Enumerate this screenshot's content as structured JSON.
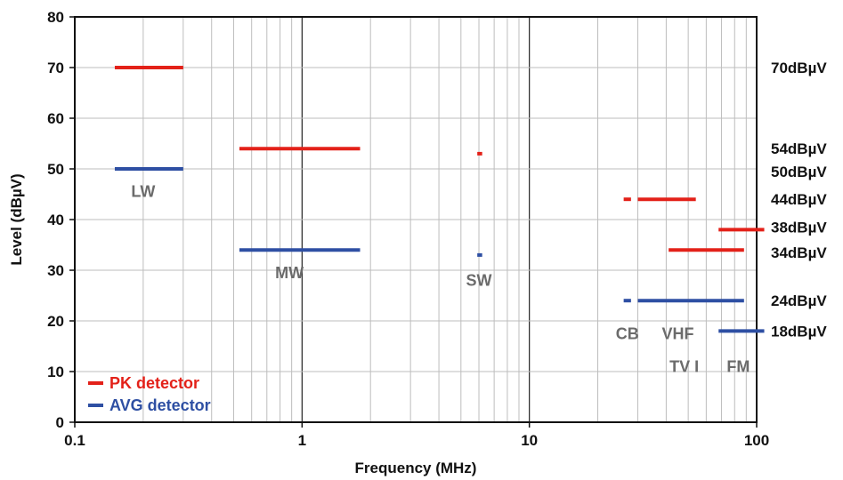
{
  "chart_data": {
    "type": "line",
    "xlabel": "Frequency (MHz)",
    "ylabel": "Level (dBµV)",
    "x_scale": "log",
    "xlim": [
      0.1,
      100
    ],
    "ylim": [
      0,
      80
    ],
    "x_ticks": [
      "0.1",
      "1",
      "10",
      "100"
    ],
    "y_ticks": [
      "0",
      "10",
      "20",
      "30",
      "40",
      "50",
      "60",
      "70",
      "80"
    ],
    "grid": true,
    "legend": {
      "position": "bottom-left",
      "items": [
        {
          "name": "PK detector",
          "color": "#e32119"
        },
        {
          "name": "AVG detector",
          "color": "#2e4fa3"
        }
      ]
    },
    "series": [
      {
        "name": "PK detector",
        "color": "#e32119",
        "segments": [
          {
            "x": [
              0.15,
              0.3
            ],
            "y": 70
          },
          {
            "x": [
              0.53,
              1.8
            ],
            "y": 54
          },
          {
            "x": [
              5.9,
              6.2
            ],
            "y": 53
          },
          {
            "x": [
              26,
              28
            ],
            "y": 44
          },
          {
            "x": [
              30,
              54
            ],
            "y": 44
          },
          {
            "x": [
              41,
              88
            ],
            "y": 34
          },
          {
            "x": [
              68,
              108
            ],
            "y": 38
          }
        ]
      },
      {
        "name": "AVG detector",
        "color": "#2e4fa3",
        "segments": [
          {
            "x": [
              0.15,
              0.3
            ],
            "y": 50
          },
          {
            "x": [
              0.53,
              1.8
            ],
            "y": 34
          },
          {
            "x": [
              5.9,
              6.2
            ],
            "y": 33
          },
          {
            "x": [
              26,
              28
            ],
            "y": 24
          },
          {
            "x": [
              30,
              88
            ],
            "y": 24
          },
          {
            "x": [
              68,
              108
            ],
            "y": 18
          }
        ]
      }
    ],
    "band_labels": [
      {
        "text": "LW",
        "x": 0.2,
        "y": 45.5
      },
      {
        "text": "MW",
        "x": 0.88,
        "y": 29.5
      },
      {
        "text": "SW",
        "x": 6.0,
        "y": 28
      },
      {
        "text": "CB",
        "x": 27,
        "y": 17.5
      },
      {
        "text": "VHF",
        "x": 45,
        "y": 17.5
      },
      {
        "text": "TV I",
        "x": 48,
        "y": 11
      },
      {
        "text": "FM",
        "x": 83,
        "y": 11
      }
    ],
    "right_labels": [
      {
        "text": "70dBµV",
        "y": 70
      },
      {
        "text": "54dBµV",
        "y": 54
      },
      {
        "text": "50dBµV",
        "y": 49.5
      },
      {
        "text": "44dBµV",
        "y": 44
      },
      {
        "text": "38dBµV",
        "y": 38.5
      },
      {
        "text": "34dBµV",
        "y": 33.5
      },
      {
        "text": "24dBµV",
        "y": 24
      },
      {
        "text": "18dBµV",
        "y": 18
      }
    ]
  }
}
